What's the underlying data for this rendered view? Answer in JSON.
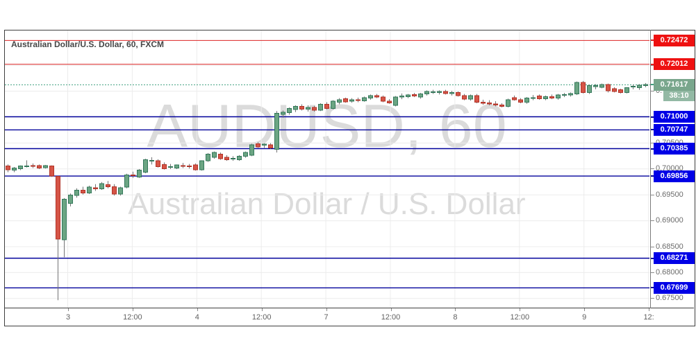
{
  "watermark": {
    "symbol_text": "AUDUSD, 60",
    "name_text": "Australian Dollar / U.S. Dollar"
  },
  "colors": {
    "up_fill": "#6ba583",
    "up_border": "#33775a",
    "down_fill": "#d65547",
    "down_border": "#b23327",
    "wick": "#737375",
    "grid": "#ececec",
    "red_line": "#dd2222",
    "red_badge": "#ee1111",
    "blue_line": "#00009b",
    "blue_badge": "#0000e6",
    "current_line": "#3f9e7e",
    "current_badge": "#79a68c",
    "countdown_badge": "#93b9a4",
    "axis_text": "#6b6b6b",
    "watermark_text": "#dbdbdb"
  },
  "chart_data": {
    "type": "candlestick",
    "title": "Australian Dollar/U.S. Dollar, 60, FXCM",
    "symbol": "AUDUSD",
    "interval": "60",
    "exchange": "FXCM",
    "y_axis_visible_range": [
      0.673,
      0.7268
    ],
    "y_ticks": [
      0.72,
      0.715,
      0.71,
      0.705,
      0.7,
      0.695,
      0.69,
      0.685,
      0.68,
      0.675
    ],
    "x_labels": [
      "3",
      "12:00",
      "4",
      "12:00",
      "7",
      "12:00",
      "8",
      "12:00",
      "9",
      "12:"
    ],
    "current_price": {
      "value": 0.71617,
      "label": "0.71617",
      "countdown": "38:10"
    },
    "levels": [
      {
        "value": 0.72472,
        "label": "0.72472",
        "color": "red"
      },
      {
        "value": 0.72012,
        "label": "0.72012",
        "color": "red"
      },
      {
        "value": 0.71,
        "label": "0.71000",
        "color": "blue"
      },
      {
        "value": 0.70747,
        "label": "0.70747",
        "color": "blue"
      },
      {
        "value": 0.70385,
        "label": "0.70385",
        "color": "blue"
      },
      {
        "value": 0.69856,
        "label": "0.69856",
        "color": "blue"
      },
      {
        "value": 0.68271,
        "label": "0.68271",
        "color": "blue"
      },
      {
        "value": 0.67699,
        "label": "0.67699",
        "color": "blue"
      }
    ],
    "candles": [
      [
        0.7005,
        0.7008,
        0.6993,
        0.6998
      ],
      [
        0.6997,
        0.7003,
        0.6993,
        0.7001
      ],
      [
        0.7,
        0.7006,
        0.6997,
        0.7005
      ],
      [
        0.7004,
        0.7016,
        0.7002,
        0.7005
      ],
      [
        0.7006,
        0.701,
        0.7001,
        0.7005
      ],
      [
        0.7006,
        0.7008,
        0.6999,
        0.7001
      ],
      [
        0.7002,
        0.7007,
        0.7,
        0.7006
      ],
      [
        0.7005,
        0.7006,
        0.6984,
        0.6986
      ],
      [
        0.6985,
        0.6986,
        0.6746,
        0.6864
      ],
      [
        0.6863,
        0.6943,
        0.6829,
        0.6941
      ],
      [
        0.6933,
        0.6952,
        0.6927,
        0.6949
      ],
      [
        0.6948,
        0.6962,
        0.6944,
        0.6958
      ],
      [
        0.6958,
        0.6965,
        0.695,
        0.6953
      ],
      [
        0.6953,
        0.6967,
        0.6951,
        0.6964
      ],
      [
        0.6963,
        0.697,
        0.6957,
        0.6961
      ],
      [
        0.6961,
        0.6974,
        0.6959,
        0.6971
      ],
      [
        0.6969,
        0.6976,
        0.6962,
        0.6965
      ],
      [
        0.6965,
        0.697,
        0.6948,
        0.6951
      ],
      [
        0.6951,
        0.6965,
        0.6948,
        0.6963
      ],
      [
        0.6964,
        0.699,
        0.6962,
        0.6988
      ],
      [
        0.6988,
        0.6994,
        0.6982,
        0.6987
      ],
      [
        0.6984,
        0.6999,
        0.6982,
        0.6997
      ],
      [
        0.6993,
        0.7019,
        0.6991,
        0.7017
      ],
      [
        0.7015,
        0.7022,
        0.7008,
        0.7016
      ],
      [
        0.7015,
        0.7018,
        0.7002,
        0.7004
      ],
      [
        0.7008,
        0.7012,
        0.6998,
        0.7
      ],
      [
        0.7004,
        0.7009,
        0.6999,
        0.7004
      ],
      [
        0.7001,
        0.7008,
        0.6999,
        0.7007
      ],
      [
        0.7006,
        0.7011,
        0.7001,
        0.7005
      ],
      [
        0.7005,
        0.7009,
        0.7,
        0.7004
      ],
      [
        0.7007,
        0.701,
        0.6996,
        0.6998
      ],
      [
        0.6998,
        0.7016,
        0.6996,
        0.7015
      ],
      [
        0.7015,
        0.703,
        0.7013,
        0.7028
      ],
      [
        0.7022,
        0.7033,
        0.7019,
        0.7031
      ],
      [
        0.7028,
        0.7031,
        0.7017,
        0.7019
      ],
      [
        0.7022,
        0.7026,
        0.7015,
        0.7017
      ],
      [
        0.7019,
        0.7024,
        0.7015,
        0.702
      ],
      [
        0.7017,
        0.7026,
        0.7015,
        0.7024
      ],
      [
        0.7024,
        0.7033,
        0.7021,
        0.7031
      ],
      [
        0.7026,
        0.7048,
        0.7024,
        0.7046
      ],
      [
        0.7048,
        0.7051,
        0.704,
        0.7042
      ],
      [
        0.7045,
        0.7049,
        0.704,
        0.7047
      ],
      [
        0.7046,
        0.7049,
        0.7038,
        0.704
      ],
      [
        0.7037,
        0.7111,
        0.7031,
        0.7107
      ],
      [
        0.7105,
        0.7112,
        0.7098,
        0.7109
      ],
      [
        0.7108,
        0.7118,
        0.7104,
        0.7116
      ],
      [
        0.7114,
        0.7122,
        0.7109,
        0.712
      ],
      [
        0.712,
        0.7124,
        0.7112,
        0.7115
      ],
      [
        0.7115,
        0.7122,
        0.711,
        0.7118
      ],
      [
        0.7118,
        0.7121,
        0.711,
        0.7113
      ],
      [
        0.7113,
        0.7126,
        0.7111,
        0.7124
      ],
      [
        0.7124,
        0.7128,
        0.7114,
        0.7116
      ],
      [
        0.7116,
        0.7132,
        0.7114,
        0.713
      ],
      [
        0.7128,
        0.7136,
        0.7124,
        0.7133
      ],
      [
        0.7135,
        0.7137,
        0.7127,
        0.7129
      ],
      [
        0.713,
        0.7136,
        0.7127,
        0.7133
      ],
      [
        0.7133,
        0.7137,
        0.7128,
        0.7132
      ],
      [
        0.7131,
        0.7139,
        0.7129,
        0.7137
      ],
      [
        0.7136,
        0.7143,
        0.7133,
        0.7141
      ],
      [
        0.7141,
        0.7144,
        0.7136,
        0.7138
      ],
      [
        0.7138,
        0.7141,
        0.7128,
        0.713
      ],
      [
        0.713,
        0.7134,
        0.7125,
        0.7127
      ],
      [
        0.7122,
        0.714,
        0.712,
        0.7138
      ],
      [
        0.7138,
        0.7145,
        0.7134,
        0.714
      ],
      [
        0.7139,
        0.7144,
        0.7136,
        0.7142
      ],
      [
        0.7143,
        0.7146,
        0.7138,
        0.714
      ],
      [
        0.7138,
        0.7146,
        0.7135,
        0.7144
      ],
      [
        0.7144,
        0.7151,
        0.7141,
        0.7149
      ],
      [
        0.7147,
        0.7152,
        0.7144,
        0.7148
      ],
      [
        0.7147,
        0.7151,
        0.7143,
        0.7149
      ],
      [
        0.7149,
        0.7152,
        0.7143,
        0.7145
      ],
      [
        0.7145,
        0.715,
        0.7141,
        0.7147
      ],
      [
        0.7147,
        0.7149,
        0.7139,
        0.7141
      ],
      [
        0.7141,
        0.7144,
        0.7132,
        0.7134
      ],
      [
        0.7134,
        0.7143,
        0.7131,
        0.7141
      ],
      [
        0.7141,
        0.7144,
        0.7126,
        0.7128
      ],
      [
        0.7128,
        0.7133,
        0.7123,
        0.7126
      ],
      [
        0.7127,
        0.7132,
        0.7122,
        0.7125
      ],
      [
        0.7125,
        0.713,
        0.712,
        0.7123
      ],
      [
        0.7123,
        0.7126,
        0.7118,
        0.712
      ],
      [
        0.712,
        0.7135,
        0.7118,
        0.7133
      ],
      [
        0.7137,
        0.7141,
        0.7131,
        0.7133
      ],
      [
        0.7133,
        0.7136,
        0.7126,
        0.7128
      ],
      [
        0.7128,
        0.7138,
        0.7125,
        0.7136
      ],
      [
        0.7136,
        0.7142,
        0.7132,
        0.7137
      ],
      [
        0.714,
        0.7143,
        0.7133,
        0.7135
      ],
      [
        0.7135,
        0.7141,
        0.7132,
        0.7139
      ],
      [
        0.7139,
        0.7143,
        0.7134,
        0.7136
      ],
      [
        0.7136,
        0.7144,
        0.7133,
        0.7142
      ],
      [
        0.7142,
        0.7146,
        0.7138,
        0.7143
      ],
      [
        0.7142,
        0.7147,
        0.7139,
        0.7145
      ],
      [
        0.7144,
        0.7168,
        0.7142,
        0.7166
      ],
      [
        0.7166,
        0.7169,
        0.7145,
        0.7147
      ],
      [
        0.7147,
        0.7162,
        0.7144,
        0.716
      ],
      [
        0.7158,
        0.7163,
        0.7153,
        0.716
      ],
      [
        0.7157,
        0.7164,
        0.7155,
        0.7162
      ],
      [
        0.7162,
        0.7164,
        0.7147,
        0.715
      ],
      [
        0.7154,
        0.7157,
        0.7147,
        0.7149
      ],
      [
        0.7152,
        0.7154,
        0.7145,
        0.7147
      ],
      [
        0.7147,
        0.7157,
        0.7145,
        0.7156
      ],
      [
        0.7158,
        0.7162,
        0.7153,
        0.7159
      ],
      [
        0.7156,
        0.7163,
        0.7152,
        0.7161
      ],
      [
        0.716,
        0.7165,
        0.7157,
        0.7162
      ]
    ]
  }
}
